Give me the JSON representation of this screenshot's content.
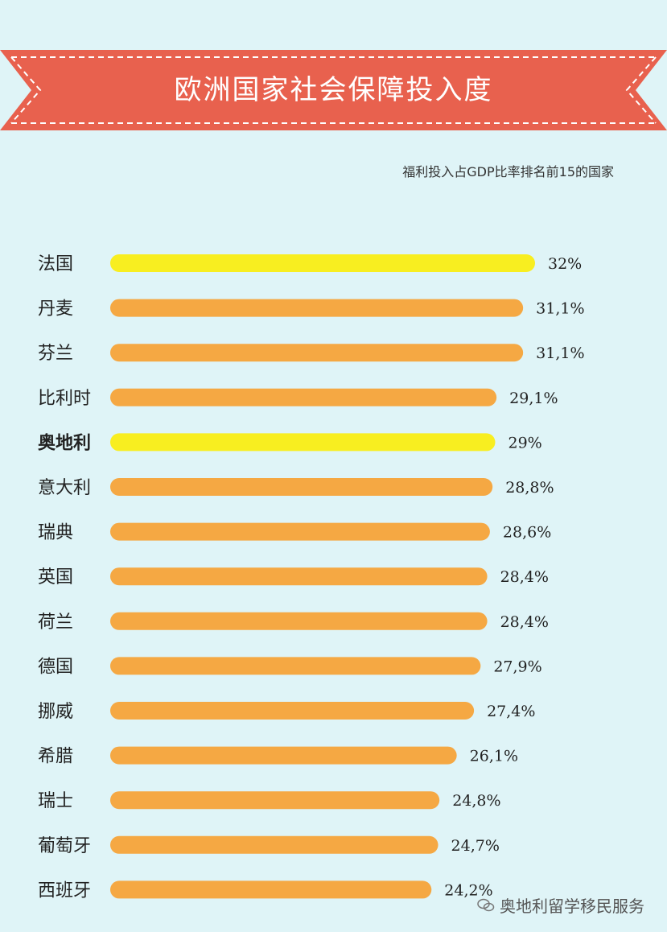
{
  "title": "欧洲国家社会保障投入度",
  "watermark": "奥地利留学移民服务",
  "colors": {
    "banner": "#e8614e",
    "bar": "#f5a843",
    "highlight": "#f8ee20",
    "background": "#dff4f7"
  },
  "chart_data": {
    "type": "bar",
    "orientation": "horizontal",
    "title": "福利投入占GDP比率排名前15的国家",
    "categories": [
      "法国",
      "丹麦",
      "芬兰",
      "比利时",
      "奥地利",
      "意大利",
      "瑞典",
      "英国",
      "荷兰",
      "德国",
      "挪威",
      "希腊",
      "瑞士",
      "葡萄牙",
      "西班牙"
    ],
    "values": [
      32,
      31.1,
      31.1,
      29.1,
      29,
      28.8,
      28.6,
      28.4,
      28.4,
      27.9,
      27.4,
      26.1,
      24.8,
      24.7,
      24.2
    ],
    "value_labels": [
      "32%",
      "31,1%",
      "31,1%",
      "29,1%",
      "29%",
      "28,8%",
      "28,6%",
      "28,4%",
      "28,4%",
      "27,9%",
      "27,4%",
      "26,1%",
      "24,8%",
      "24,7%",
      "24,2%"
    ],
    "highlighted": [
      "法国",
      "奥地利"
    ],
    "bold_labels": [
      "奥地利"
    ],
    "unit": "%"
  }
}
